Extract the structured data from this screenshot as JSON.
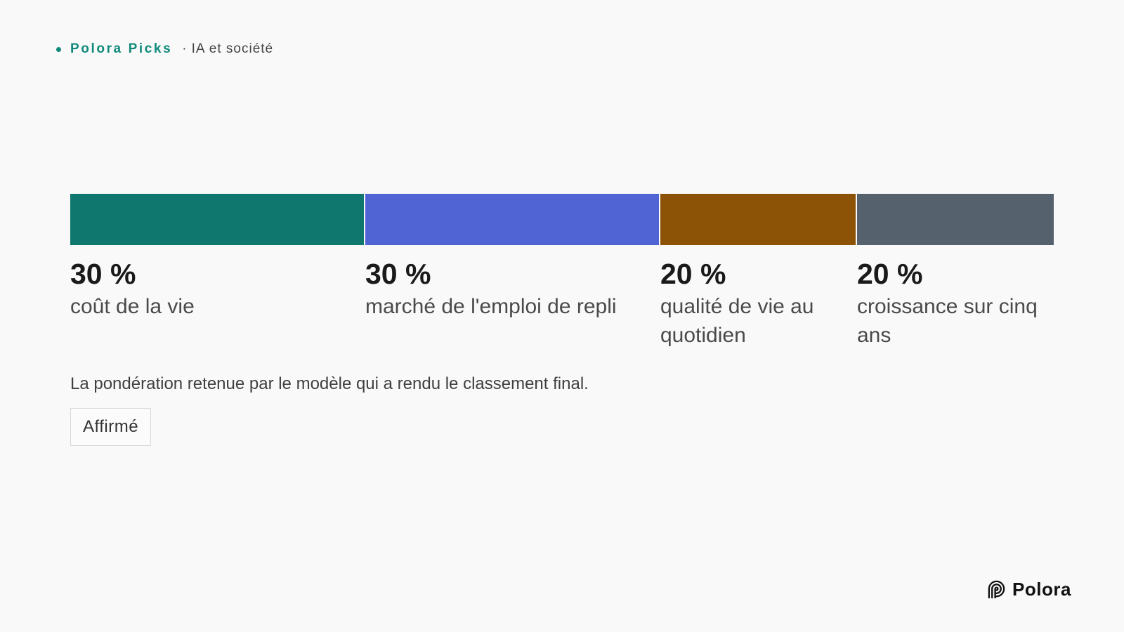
{
  "header": {
    "brand": "Polora Picks",
    "separator": "·",
    "topic": "IA et société"
  },
  "chart_data": {
    "type": "bar",
    "categories": [
      "coût de la vie",
      "marché de l'emploi de repli",
      "qualité de vie au quotidien",
      "croissance sur cinq ans"
    ],
    "values": [
      30,
      30,
      20,
      20
    ],
    "value_labels": [
      "30 %",
      "30 %",
      "20 %",
      "20 %"
    ],
    "stacked": true,
    "orientation": "horizontal",
    "total": 100,
    "colors": [
      "#0f776d",
      "#5064d4",
      "#8c5205",
      "#55626e"
    ],
    "legend": "none",
    "grid": false
  },
  "caption": "La pondération retenue par le modèle qui a rendu le classement final.",
  "badge": "Affirmé",
  "logo": {
    "name": "Polora"
  }
}
